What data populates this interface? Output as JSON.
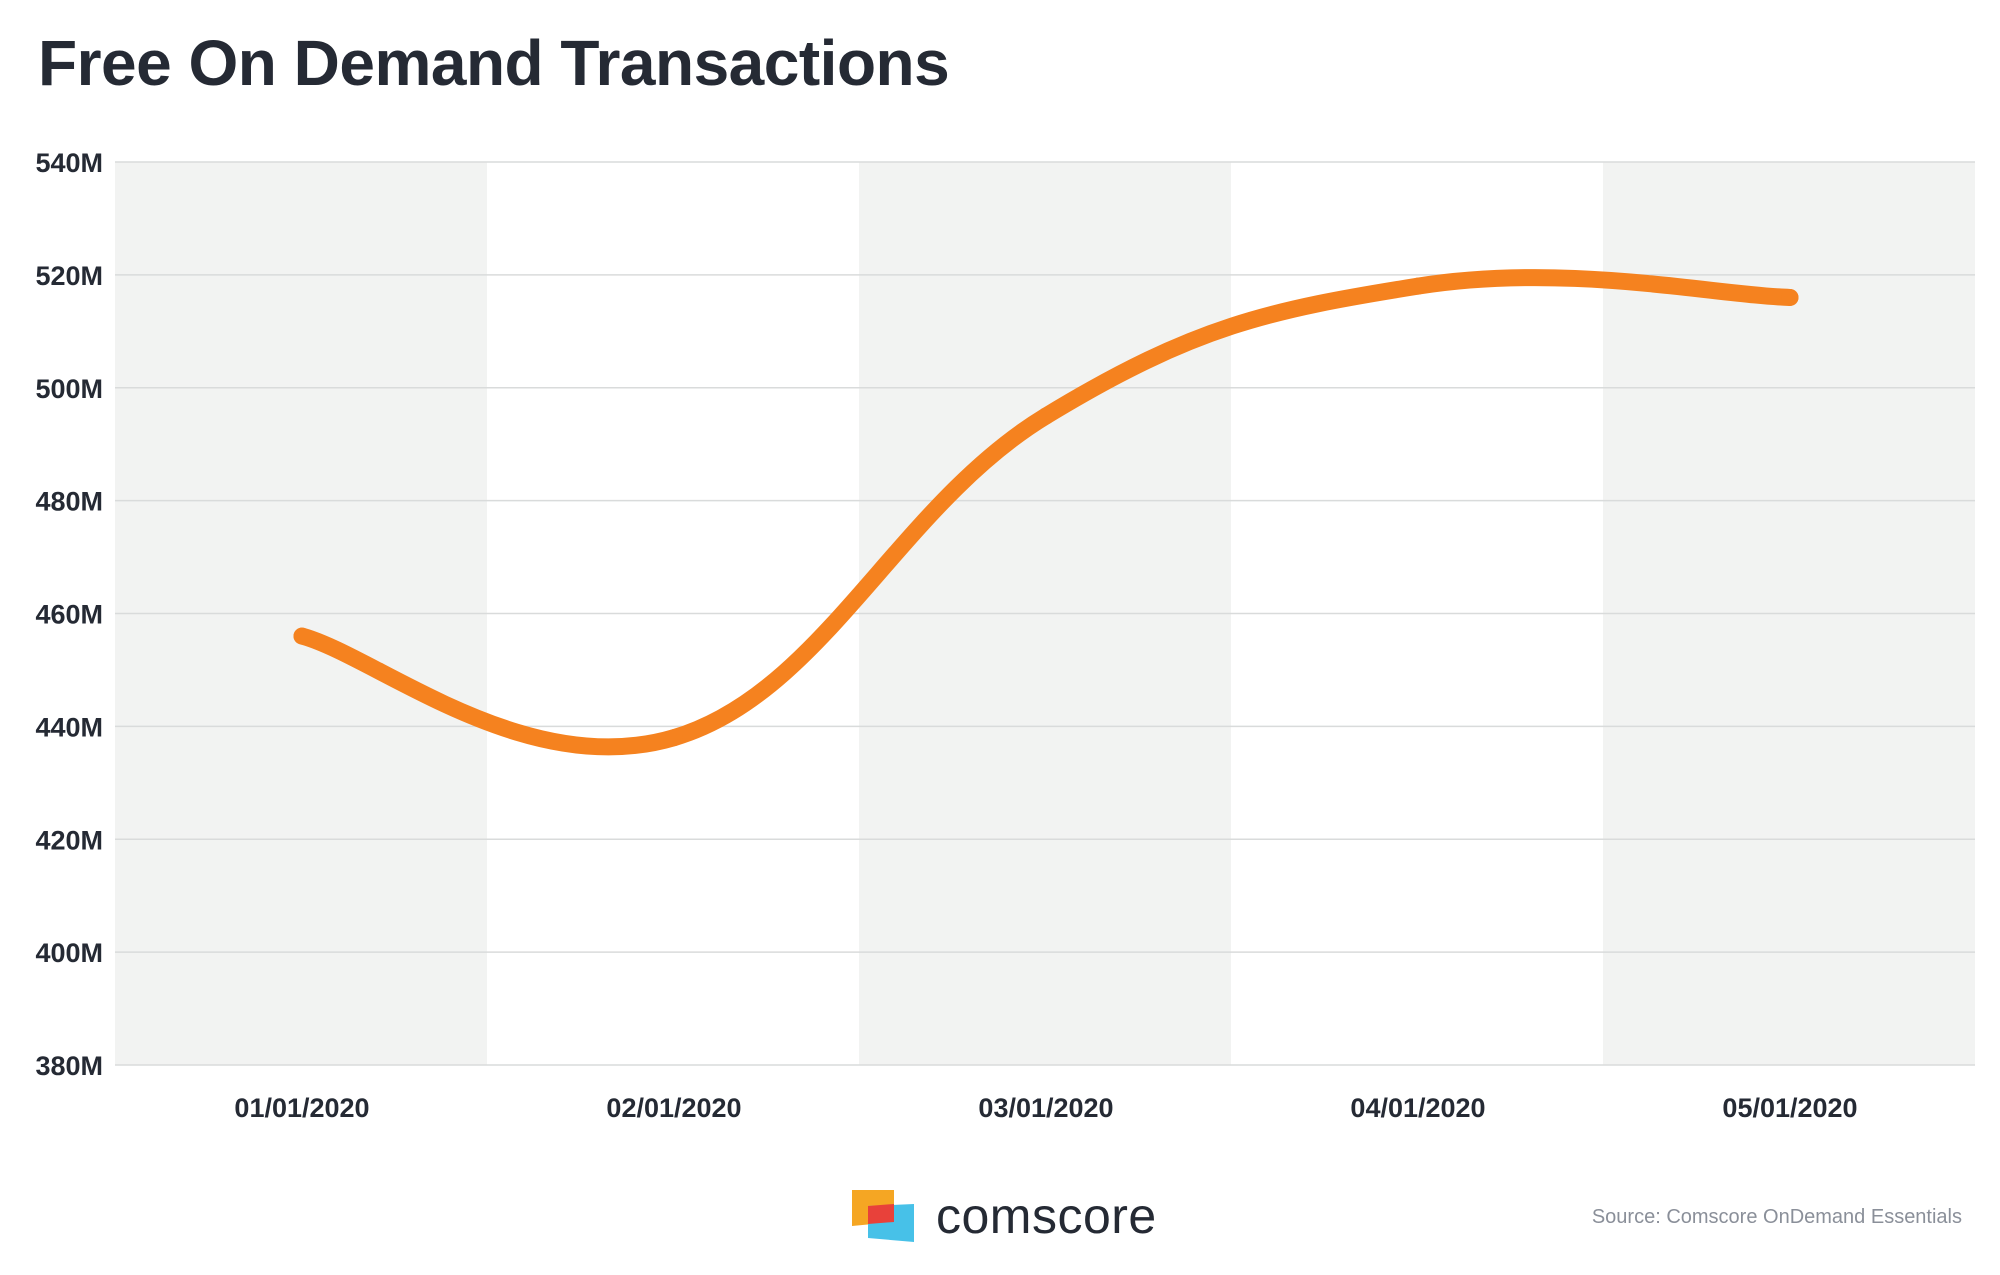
{
  "title": "Free On Demand Transactions",
  "footer": {
    "brand": "comscore",
    "source": "Source: Comscore OnDemand Essentials"
  },
  "colors": {
    "line": "#f5821f",
    "band": "#f2f3f2",
    "grid": "#d9dbdb",
    "text": "#252a34",
    "logo_orange": "#f5a623",
    "logo_red": "#e8413a",
    "logo_blue": "#47c1e8"
  },
  "chart_data": {
    "type": "line",
    "title": "Free On Demand Transactions",
    "xlabel": "",
    "ylabel": "",
    "categories": [
      "01/01/2020",
      "02/01/2020",
      "03/01/2020",
      "04/01/2020",
      "05/01/2020"
    ],
    "yticks": [
      "380M",
      "400M",
      "420M",
      "440M",
      "460M",
      "480M",
      "500M",
      "520M",
      "540M"
    ],
    "ylim": [
      380,
      540
    ],
    "y_unit": "M",
    "grid": true,
    "alternating_bands": true,
    "series": [
      {
        "values": [
          456,
          438,
          495,
          518,
          516
        ]
      }
    ],
    "line_points": [
      {
        "x": "01/01/2020",
        "y": 456
      },
      {
        "x": "02/01/2020",
        "y": 438
      },
      {
        "x": "03/01/2020",
        "y": 495
      },
      {
        "x": "04/01/2020",
        "y": 518
      },
      {
        "x": "05/01/2020",
        "y": 516
      }
    ]
  }
}
